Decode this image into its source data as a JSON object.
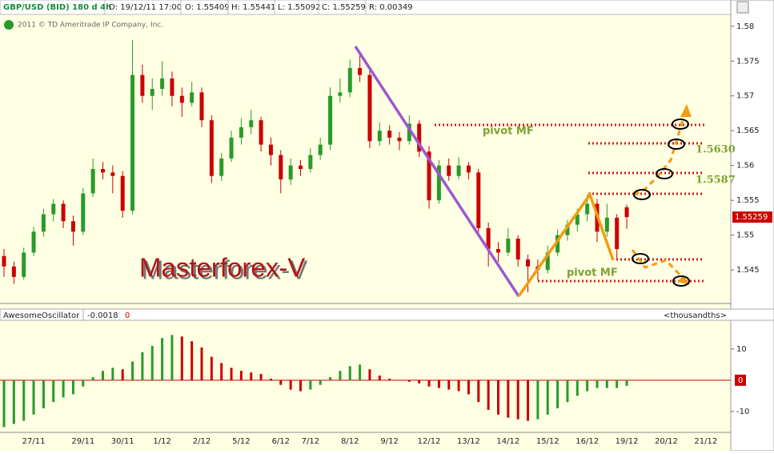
{
  "header": {
    "symbol": "GBP/USD (BID) 180 d 4h",
    "date": "D: 19/12/11 17:00",
    "open": "O: 1.55409",
    "high": "H: 1.55441",
    "low": "L: 1.55092",
    "close": "C: 1.55259",
    "range": "R: 0.00349"
  },
  "copyright": "2011 © TD Ameritrade IP Company, Inc.",
  "annotations": {
    "watermark": "Masterforex-V",
    "pivot_top": "pivot MF",
    "pivot_bottom": "pivot MF",
    "level_1": "1.5630",
    "level_2": "1.5587"
  },
  "chart_data": [
    {
      "type": "candlestick",
      "up_color": "#2a9a2a",
      "down_color": "#cc0000",
      "ylim": [
        1.5403,
        1.5817
      ],
      "yticks": [
        1.58,
        1.575,
        1.57,
        1.565,
        1.56,
        1.555,
        1.55,
        1.545
      ],
      "current_price": 1.55259,
      "ohlc": [
        [
          1.547,
          1.548,
          1.544,
          1.5455
        ],
        [
          1.5455,
          1.5462,
          1.543,
          1.544
        ],
        [
          1.544,
          1.5482,
          1.5436,
          1.5475
        ],
        [
          1.5475,
          1.5512,
          1.547,
          1.5505
        ],
        [
          1.5505,
          1.5538,
          1.5498,
          1.553
        ],
        [
          1.553,
          1.5552,
          1.552,
          1.5545
        ],
        [
          1.5545,
          1.555,
          1.551,
          1.552
        ],
        [
          1.552,
          1.5528,
          1.5485,
          1.5505
        ],
        [
          1.5505,
          1.5568,
          1.55,
          1.556
        ],
        [
          1.556,
          1.561,
          1.5555,
          1.5595
        ],
        [
          1.5595,
          1.5605,
          1.558,
          1.559
        ],
        [
          1.559,
          1.56,
          1.556,
          1.5585
        ],
        [
          1.5585,
          1.5592,
          1.5525,
          1.5535
        ],
        [
          1.5535,
          1.578,
          1.553,
          1.573
        ],
        [
          1.573,
          1.5745,
          1.569,
          1.57
        ],
        [
          1.57,
          1.5725,
          1.568,
          1.571
        ],
        [
          1.571,
          1.575,
          1.57,
          1.5725
        ],
        [
          1.5725,
          1.5735,
          1.5685,
          1.57
        ],
        [
          1.57,
          1.5712,
          1.567,
          1.569
        ],
        [
          1.569,
          1.572,
          1.5685,
          1.5705
        ],
        [
          1.5705,
          1.5712,
          1.5655,
          1.5665
        ],
        [
          1.5665,
          1.5672,
          1.5575,
          1.5585
        ],
        [
          1.5585,
          1.5618,
          1.5578,
          1.561
        ],
        [
          1.561,
          1.565,
          1.5605,
          1.564
        ],
        [
          1.564,
          1.5668,
          1.563,
          1.5655
        ],
        [
          1.5655,
          1.568,
          1.5645,
          1.5665
        ],
        [
          1.5665,
          1.567,
          1.562,
          1.563
        ],
        [
          1.563,
          1.564,
          1.56,
          1.5615
        ],
        [
          1.5615,
          1.5622,
          1.556,
          1.558
        ],
        [
          1.558,
          1.561,
          1.5572,
          1.56
        ],
        [
          1.56,
          1.5608,
          1.5585,
          1.5595
        ],
        [
          1.5595,
          1.5625,
          1.559,
          1.5615
        ],
        [
          1.5615,
          1.564,
          1.5608,
          1.563
        ],
        [
          1.563,
          1.5712,
          1.5622,
          1.57
        ],
        [
          1.57,
          1.5725,
          1.569,
          1.5705
        ],
        [
          1.5705,
          1.5752,
          1.5698,
          1.574
        ],
        [
          1.574,
          1.576,
          1.572,
          1.573
        ],
        [
          1.573,
          1.574,
          1.5625,
          1.5635
        ],
        [
          1.5635,
          1.5662,
          1.5628,
          1.565
        ],
        [
          1.565,
          1.5658,
          1.563,
          1.564
        ],
        [
          1.564,
          1.5648,
          1.5622,
          1.5635
        ],
        [
          1.5635,
          1.5672,
          1.563,
          1.566
        ],
        [
          1.566,
          1.5665,
          1.5612,
          1.562
        ],
        [
          1.562,
          1.5628,
          1.5538,
          1.555
        ],
        [
          1.555,
          1.5608,
          1.5545,
          1.56
        ],
        [
          1.56,
          1.561,
          1.5578,
          1.5585
        ],
        [
          1.5585,
          1.5612,
          1.558,
          1.56
        ],
        [
          1.56,
          1.5605,
          1.558,
          1.559
        ],
        [
          1.559,
          1.5595,
          1.55,
          1.551
        ],
        [
          1.551,
          1.5518,
          1.5455,
          1.548
        ],
        [
          1.548,
          1.549,
          1.5462,
          1.5475
        ],
        [
          1.5475,
          1.551,
          1.547,
          1.5495
        ],
        [
          1.5495,
          1.55,
          1.5455,
          1.5465
        ],
        [
          1.5465,
          1.5472,
          1.5418,
          1.5455
        ],
        [
          1.5455,
          1.5465,
          1.5435,
          1.545
        ],
        [
          1.545,
          1.5485,
          1.5445,
          1.5475
        ],
        [
          1.5475,
          1.5508,
          1.547,
          1.55
        ],
        [
          1.55,
          1.5522,
          1.5492,
          1.5515
        ],
        [
          1.5515,
          1.5538,
          1.5505,
          1.553
        ],
        [
          1.553,
          1.5558,
          1.552,
          1.5545
        ],
        [
          1.5545,
          1.5552,
          1.549,
          1.5505
        ],
        [
          1.5505,
          1.5545,
          1.5498,
          1.5525
        ],
        [
          1.5525,
          1.553,
          1.5465,
          1.548
        ],
        [
          1.554,
          1.5544,
          1.5509,
          1.5526
        ],
        null,
        null,
        null,
        null,
        null,
        null,
        null,
        null,
        null
      ]
    },
    {
      "type": "bar",
      "name": "AwesomeOscillator",
      "last_value": -0.0018,
      "flag": "0",
      "units": "<thousandths>",
      "up_color": "#2a9a2a",
      "down_color": "#cc0000",
      "ylim": [
        -16.7,
        19.2
      ],
      "yticks": [
        10,
        0,
        -10
      ],
      "categories": [
        null,
        null,
        null,
        "27/11",
        null,
        null,
        null,
        null,
        "29/11",
        null,
        null,
        null,
        "30/11",
        null,
        null,
        null,
        "1/12",
        null,
        null,
        null,
        "2/12",
        null,
        null,
        null,
        "5/12",
        null,
        null,
        null,
        "6/12",
        null,
        null,
        "7/12",
        null,
        null,
        null,
        "8/12",
        null,
        null,
        null,
        "9/12",
        null,
        null,
        null,
        "12/12",
        null,
        null,
        null,
        "13/12",
        null,
        null,
        null,
        "14/12",
        null,
        null,
        null,
        "15/12",
        null,
        null,
        null,
        "16/12",
        null,
        null,
        null,
        "19/12",
        null,
        null,
        null,
        "20/12",
        null,
        null,
        null,
        "21/12",
        null
      ],
      "values": [
        -15,
        -14,
        -13,
        -11,
        -9,
        -7,
        -5.5,
        -4.5,
        -2,
        1,
        3,
        4,
        3.5,
        6,
        9,
        11,
        13.5,
        14.5,
        14,
        12.5,
        10.5,
        7.5,
        5.5,
        4,
        3,
        2.5,
        2,
        0.5,
        -1.5,
        -3,
        -3.5,
        -3,
        -1.5,
        1,
        3,
        4.5,
        5,
        3.5,
        1.5,
        0.5,
        0,
        -0.5,
        -1,
        -2,
        -2.5,
        -3,
        -3.5,
        -4.5,
        -7,
        -9.5,
        -11,
        -12,
        -12.5,
        -13,
        -12.5,
        -11,
        -9,
        -7,
        -5,
        -3.5,
        -2.5,
        -2.5,
        -2.5,
        -1.8,
        null,
        null,
        null,
        null,
        null,
        null,
        null,
        null,
        null
      ]
    }
  ]
}
